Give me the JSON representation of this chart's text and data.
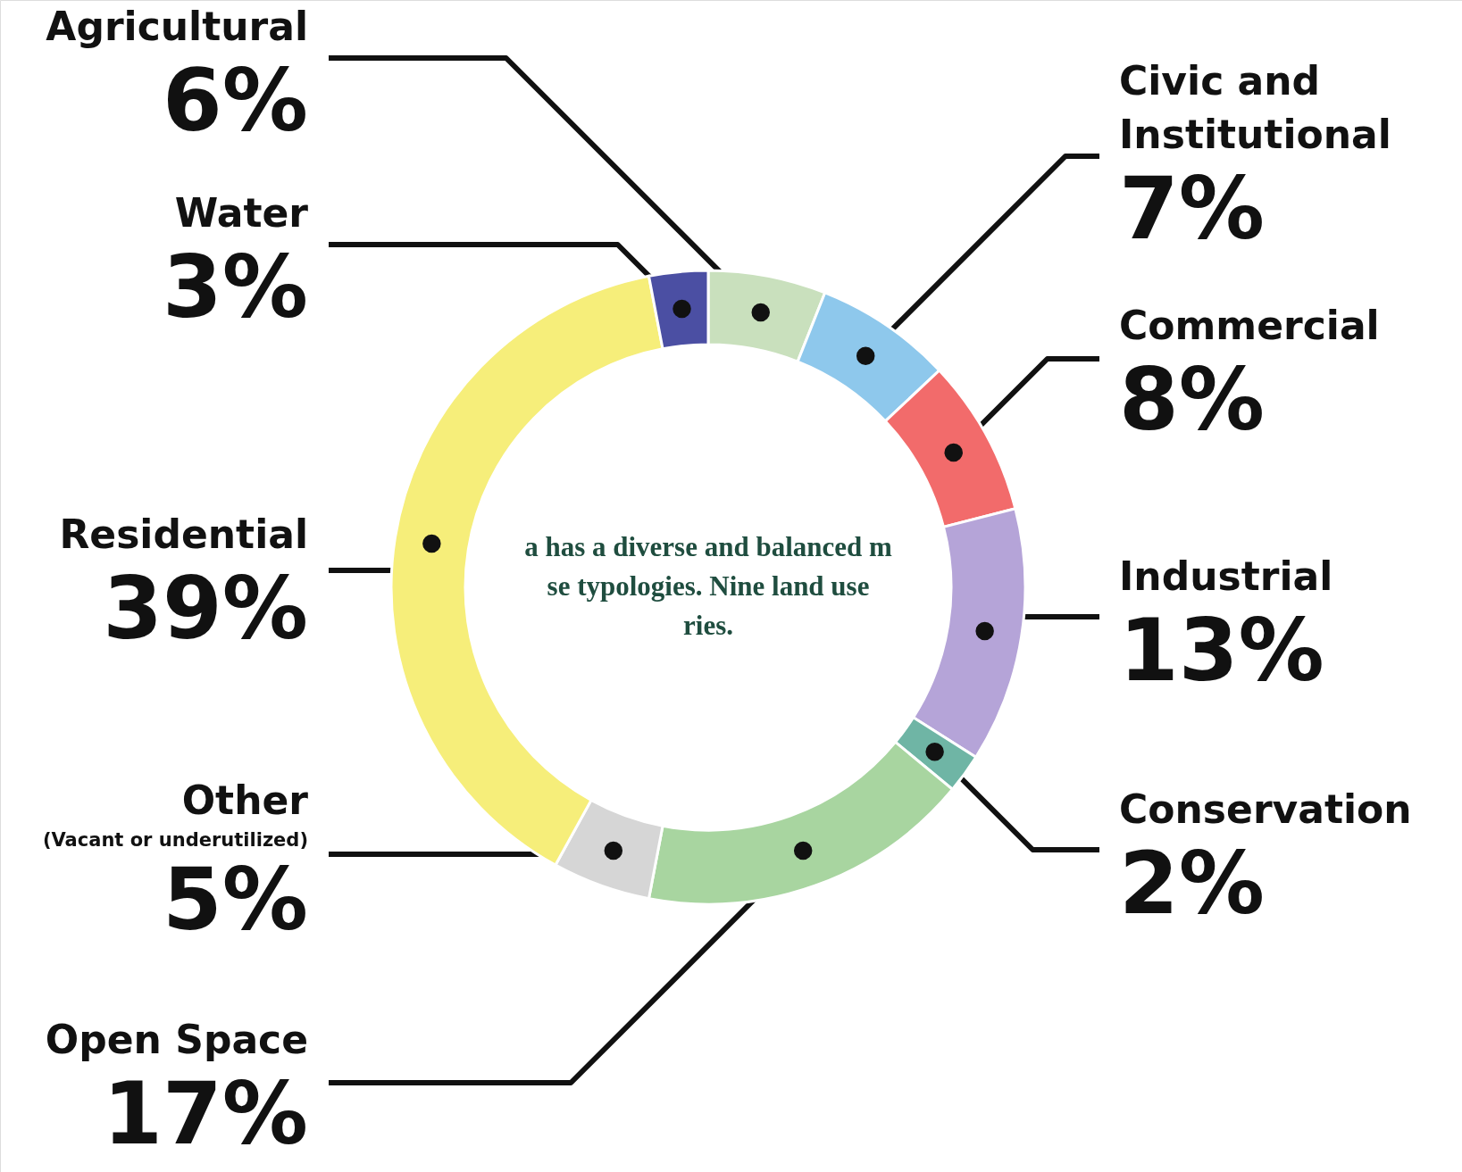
{
  "chart_data": {
    "type": "donut",
    "categories": [
      "Agricultural",
      "Civic and Institutional",
      "Commercial",
      "Industrial",
      "Conservation",
      "Open Space",
      "Other (Vacant or underutilized)",
      "Residential",
      "Water"
    ],
    "values": [
      6,
      7,
      8,
      13,
      2,
      17,
      5,
      39,
      3
    ],
    "colors": [
      "#c9e0bd",
      "#8ec8ec",
      "#f26b6b",
      "#b5a4d8",
      "#6fb5a5",
      "#a8d5a0",
      "#d6d6d6",
      "#f6ee7a",
      "#4b4fa3"
    ],
    "value_labels": [
      "6%",
      "7%",
      "8%",
      "13%",
      "2%",
      "17%",
      "5%",
      "39%",
      "3%"
    ],
    "annotations": [
      "a has a diverse and balanced m",
      "se typologies. Nine land use",
      "ries."
    ]
  }
}
